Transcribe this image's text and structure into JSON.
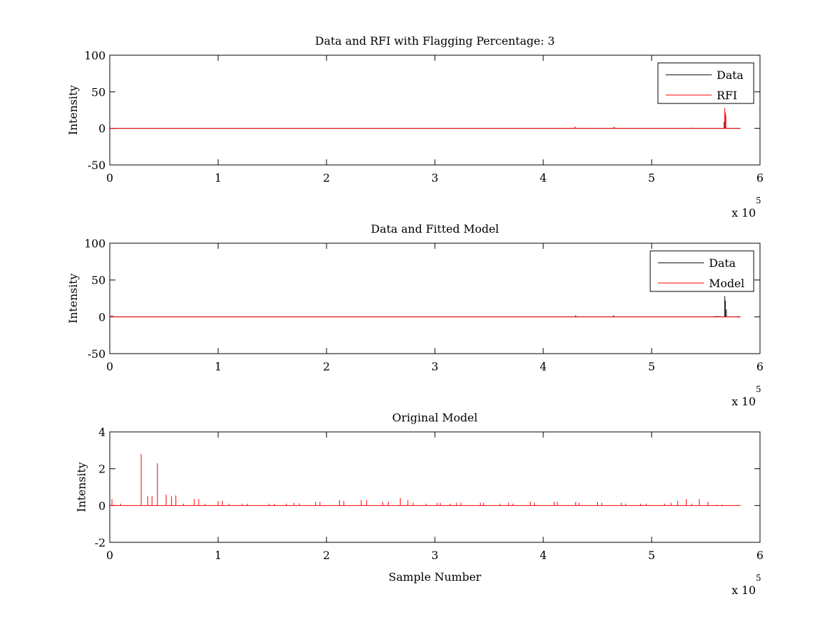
{
  "chart_data": [
    {
      "type": "line",
      "title": "Data and RFI with Flagging Percentage: 3",
      "xlabel": "",
      "ylabel": "Intensity",
      "xlim": [
        0,
        6
      ],
      "ylim": [
        -50,
        100
      ],
      "xticks": [
        "0",
        "1",
        "2",
        "3",
        "4",
        "5",
        "6"
      ],
      "yticks": [
        "-50",
        "0",
        "50",
        "100"
      ],
      "x_multiplier": {
        "base": "x 10",
        "exponent": "5"
      },
      "legend": "top-right",
      "series": [
        {
          "name": "Data",
          "color": "#000000",
          "baseline": 0,
          "x_range": [
            0,
            5.82
          ],
          "spikes": [
            [
              5.67,
              9
            ],
            [
              5.68,
              16
            ]
          ]
        },
        {
          "name": "RFI",
          "color": "#ff0000",
          "baseline": 0,
          "x_range": [
            0,
            5.82
          ],
          "spikes": [
            [
              4.29,
              2
            ],
            [
              4.3,
              1.5
            ],
            [
              4.65,
              2
            ],
            [
              4.66,
              1.5
            ],
            [
              5.37,
              1
            ],
            [
              5.675,
              28
            ],
            [
              5.68,
              22
            ],
            [
              5.685,
              18
            ]
          ]
        }
      ]
    },
    {
      "type": "line",
      "title": "Data and Fitted Model",
      "xlabel": "",
      "ylabel": "Intensity",
      "xlim": [
        0,
        6
      ],
      "ylim": [
        -50,
        100
      ],
      "xticks": [
        "0",
        "1",
        "2",
        "3",
        "4",
        "5",
        "6"
      ],
      "yticks": [
        "-50",
        "0",
        "50",
        "100"
      ],
      "x_multiplier": {
        "base": "x 10",
        "exponent": "5"
      },
      "legend": "top-right",
      "series": [
        {
          "name": "Data",
          "color": "#000000",
          "baseline": 0,
          "x_range": [
            0,
            5.82
          ],
          "spikes": [
            [
              0.02,
              2
            ],
            [
              4.3,
              2
            ],
            [
              4.65,
              2
            ],
            [
              5.59,
              1
            ],
            [
              5.6,
              1
            ],
            [
              5.61,
              1
            ],
            [
              5.63,
              1
            ],
            [
              5.675,
              28
            ],
            [
              5.68,
              22
            ],
            [
              5.69,
              10
            ],
            [
              5.8,
              1
            ]
          ]
        },
        {
          "name": "Model",
          "color": "#ff0000",
          "baseline": 0,
          "x_range": [
            0,
            5.82
          ],
          "spikes": []
        }
      ]
    },
    {
      "type": "line",
      "title": "Original Model",
      "xlabel": "Sample Number",
      "ylabel": "Intensity",
      "xlim": [
        0,
        6
      ],
      "ylim": [
        -2,
        4
      ],
      "xticks": [
        "0",
        "1",
        "2",
        "3",
        "4",
        "5",
        "6"
      ],
      "yticks": [
        "-2",
        "0",
        "2",
        "4"
      ],
      "x_multiplier": {
        "base": "x 10",
        "exponent": "5"
      },
      "legend": "none",
      "series": [
        {
          "name": "",
          "color": "#ff0000",
          "baseline": 0,
          "x_range": [
            0,
            5.82
          ],
          "spikes": [
            [
              0.02,
              0.35
            ],
            [
              0.1,
              0.1
            ],
            [
              0.29,
              2.8
            ],
            [
              0.35,
              0.5
            ],
            [
              0.39,
              0.5
            ],
            [
              0.44,
              2.3
            ],
            [
              0.52,
              0.6
            ],
            [
              0.57,
              0.5
            ],
            [
              0.61,
              0.55
            ],
            [
              0.68,
              0.1
            ],
            [
              0.78,
              0.35
            ],
            [
              0.82,
              0.35
            ],
            [
              0.88,
              0.1
            ],
            [
              1.0,
              0.25
            ],
            [
              1.04,
              0.25
            ],
            [
              1.1,
              0.1
            ],
            [
              1.22,
              0.1
            ],
            [
              1.27,
              0.1
            ],
            [
              1.47,
              0.1
            ],
            [
              1.52,
              0.1
            ],
            [
              1.63,
              0.1
            ],
            [
              1.7,
              0.15
            ],
            [
              1.75,
              0.12
            ],
            [
              1.9,
              0.2
            ],
            [
              1.94,
              0.2
            ],
            [
              2.12,
              0.3
            ],
            [
              2.16,
              0.25
            ],
            [
              2.32,
              0.3
            ],
            [
              2.37,
              0.3
            ],
            [
              2.52,
              0.2
            ],
            [
              2.57,
              0.2
            ],
            [
              2.68,
              0.4
            ],
            [
              2.75,
              0.3
            ],
            [
              2.8,
              0.15
            ],
            [
              2.92,
              0.1
            ],
            [
              3.02,
              0.15
            ],
            [
              3.05,
              0.15
            ],
            [
              3.14,
              0.1
            ],
            [
              3.2,
              0.15
            ],
            [
              3.24,
              0.15
            ],
            [
              3.42,
              0.15
            ],
            [
              3.45,
              0.15
            ],
            [
              3.6,
              0.1
            ],
            [
              3.68,
              0.15
            ],
            [
              3.72,
              0.1
            ],
            [
              3.88,
              0.2
            ],
            [
              3.92,
              0.15
            ],
            [
              4.1,
              0.2
            ],
            [
              4.13,
              0.2
            ],
            [
              4.3,
              0.2
            ],
            [
              4.33,
              0.15
            ],
            [
              4.5,
              0.2
            ],
            [
              4.54,
              0.15
            ],
            [
              4.72,
              0.15
            ],
            [
              4.76,
              0.1
            ],
            [
              4.9,
              0.1
            ],
            [
              4.95,
              0.1
            ],
            [
              5.12,
              0.1
            ],
            [
              5.18,
              0.15
            ],
            [
              5.24,
              0.25
            ],
            [
              5.32,
              0.35
            ],
            [
              5.37,
              0.1
            ],
            [
              5.44,
              0.35
            ],
            [
              5.52,
              0.2
            ],
            [
              5.6,
              0.05
            ],
            [
              5.65,
              0.05
            ]
          ]
        }
      ]
    }
  ]
}
